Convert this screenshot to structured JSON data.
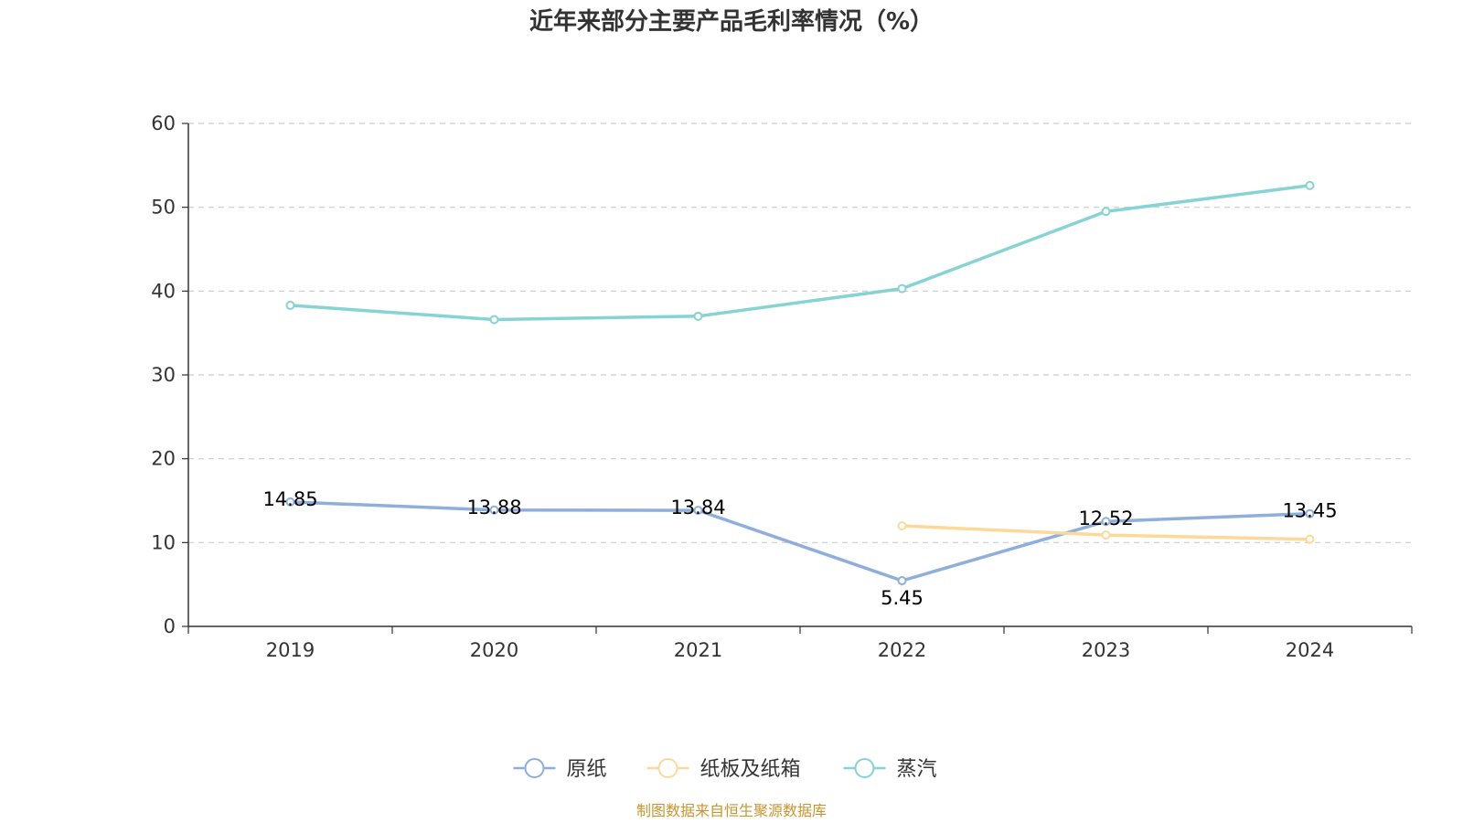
{
  "chart_data": {
    "type": "line",
    "title": "近年来部分主要产品毛利率情况（%）",
    "categories": [
      "2019",
      "2020",
      "2021",
      "2022",
      "2023",
      "2024"
    ],
    "ylim": [
      0,
      60
    ],
    "yticks": [
      "0",
      "10",
      "20",
      "30",
      "40",
      "50",
      "60"
    ],
    "grid": true,
    "legend_position": "bottom",
    "series": [
      {
        "name": "原纸",
        "color": "#8eaedb",
        "values": [
          14.85,
          13.88,
          13.84,
          5.45,
          12.52,
          13.45
        ],
        "labels": [
          "14.85",
          "13.88",
          "13.84",
          "5.45",
          "12.52",
          "13.45"
        ]
      },
      {
        "name": "纸板及纸箱",
        "color": "#fcd99a",
        "values": [
          null,
          null,
          null,
          12.0,
          10.9,
          10.4
        ]
      },
      {
        "name": "蒸汽",
        "color": "#86d3d3",
        "values": [
          38.3,
          36.6,
          37.0,
          40.3,
          49.5,
          52.6
        ]
      }
    ]
  },
  "source": "制图数据来自恒生聚源数据库"
}
